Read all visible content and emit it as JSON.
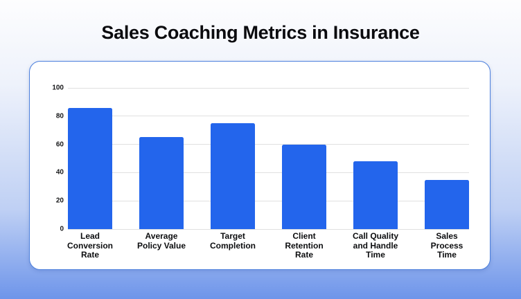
{
  "page": {
    "title": "Sales Coaching Metrics in Insurance"
  },
  "chart_data": {
    "type": "bar",
    "title": "Sales Coaching Metrics in Insurance",
    "categories": [
      "Lead Conversion Rate",
      "Average Policy Value",
      "Target Completion",
      "Client Retention Rate",
      "Call Quality and Handle Time",
      "Sales Process Time"
    ],
    "category_lines": [
      "Lead\nConversion\nRate",
      "Average\nPolicy Value",
      "Target\nCompletion",
      "Client\nRetention\nRate",
      "Call Quality\nand Handle\nTime",
      "Sales\nProcess\nTime"
    ],
    "values": [
      86,
      65,
      75,
      60,
      48,
      35
    ],
    "xlabel": "",
    "ylabel": "",
    "ylim": [
      0,
      100
    ],
    "yticks": [
      0,
      20,
      40,
      60,
      80,
      100
    ],
    "grid": "horizontal",
    "legend_position": "none",
    "colors": {
      "bar": "#2365ec",
      "grid": "#e0e0e0",
      "tick_text": "#17181a",
      "xlabel_text": "#0c0d0f",
      "title_text": "#0b0b0e",
      "card_bg": "#ffffff",
      "card_border": "#4b7fdd",
      "bg_top": "#fdfdfe",
      "bg_bottom": "#6e95ea"
    }
  }
}
